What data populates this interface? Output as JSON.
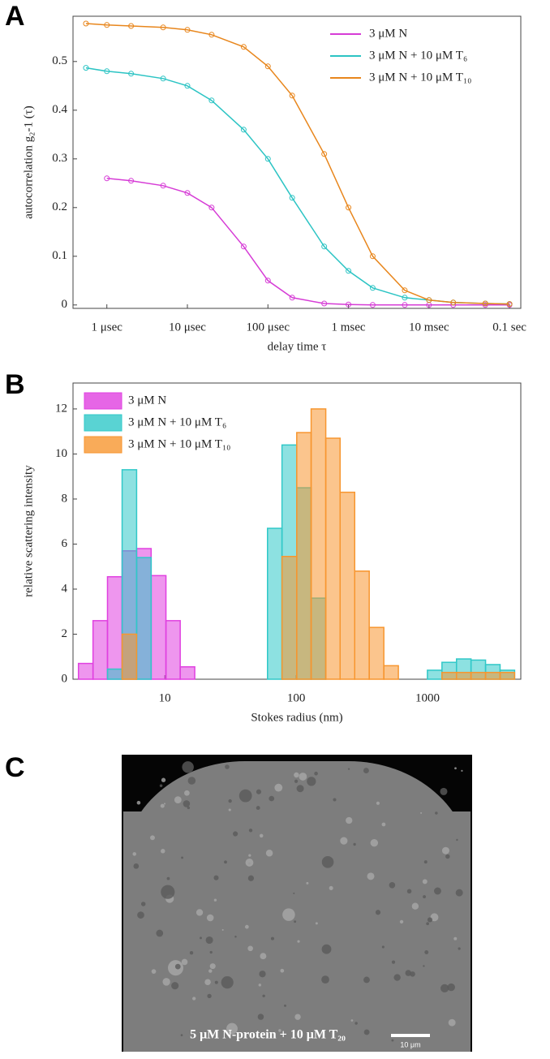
{
  "panel_labels": [
    "A",
    "B",
    "C"
  ],
  "chart_data": [
    {
      "type": "line",
      "log_x": true,
      "legend": "upper right",
      "xlabel": "delay time τ",
      "ylabel": "autocorrelation g₂-1 (τ)",
      "x": [
        5.5e-07,
        1e-06,
        2e-06,
        5e-06,
        1e-05,
        2e-05,
        5e-05,
        0.0001,
        0.0002,
        0.0005,
        0.001,
        0.002,
        0.005,
        0.01,
        0.02,
        0.05,
        0.1
      ],
      "series": [
        {
          "name": "3 μM N",
          "color": "#d63cd6",
          "values": [
            null,
            0.26,
            0.255,
            0.245,
            0.23,
            0.2,
            0.12,
            0.05,
            0.015,
            0.003,
            0.001,
            0,
            0,
            0,
            0,
            0,
            0
          ]
        },
        {
          "name": "3 μM N + 10 μM T₆",
          "color": "#2cc4c4",
          "values": [
            0.487,
            0.48,
            0.475,
            0.465,
            0.45,
            0.42,
            0.36,
            0.3,
            0.22,
            0.12,
            0.07,
            0.035,
            0.015,
            0.01,
            0.005,
            0.003,
            0.002
          ]
        },
        {
          "name": "3 μM N + 10 μM T₁₀",
          "color": "#e8861c",
          "values": [
            0.578,
            0.575,
            0.573,
            0.57,
            0.565,
            0.555,
            0.53,
            0.49,
            0.43,
            0.31,
            0.2,
            0.1,
            0.03,
            0.01,
            0.005,
            0.003,
            0.002
          ]
        }
      ],
      "xlim": [
        3.8e-07,
        0.138
      ],
      "xticks": [
        {
          "value": 1e-06,
          "label": "1 μsec"
        },
        {
          "value": 1e-05,
          "label": "10 μsec"
        },
        {
          "value": 0.0001,
          "label": "100 μsec"
        },
        {
          "value": 0.001,
          "label": "1 msec"
        },
        {
          "value": 0.01,
          "label": "10 msec"
        },
        {
          "value": 0.1,
          "label": "0.1 sec"
        }
      ],
      "ylim": [
        -0.007,
        0.593
      ],
      "yticks": [
        0,
        0.1,
        0.2,
        0.3,
        0.4,
        0.5
      ]
    },
    {
      "type": "histogram",
      "log_x": true,
      "legend": "upper left",
      "xlabel": "Stokes radius (nm)",
      "ylabel": "relative scattering intensity",
      "bins": [
        2.2,
        2.84,
        3.66,
        4.73,
        6.1,
        7.87,
        10.2,
        13.1,
        16.9,
        21.8,
        28.2,
        36.3,
        46.9,
        60.5,
        78,
        101,
        130,
        168,
        216,
        279,
        360,
        465,
        600,
        774,
        998,
        1288,
        1662,
        2144,
        2766,
        3568,
        4603
      ],
      "series": [
        {
          "name": "3 μM N",
          "color": "#e040e0",
          "values": [
            0.7,
            2.6,
            4.55,
            5.7,
            5.8,
            4.6,
            2.6,
            0.55,
            0,
            0,
            0,
            0,
            0,
            0,
            0,
            0,
            0,
            0,
            0,
            0,
            0,
            0,
            0,
            0,
            0,
            0,
            0,
            0,
            0,
            0
          ]
        },
        {
          "name": "3 μM N + 10 μM T₆",
          "color": "#30c8c8",
          "values": [
            0,
            0,
            0.45,
            9.3,
            5.4,
            0,
            0,
            0,
            0,
            0,
            0,
            0,
            0,
            6.7,
            10.4,
            8.5,
            3.6,
            0,
            0,
            0,
            0,
            0,
            0,
            0,
            0.4,
            0.75,
            0.9,
            0.85,
            0.65,
            0.4
          ]
        },
        {
          "name": "3 μM N + 10 μM T₁₀",
          "color": "#f7962f",
          "values": [
            0,
            0,
            0,
            2.0,
            0,
            0,
            0,
            0,
            0,
            0,
            0,
            0,
            0,
            0,
            5.45,
            10.95,
            12,
            10.7,
            8.3,
            4.8,
            2.3,
            0.6,
            0,
            0,
            0,
            0.3,
            0.3,
            0.3,
            0.3,
            0.3
          ]
        }
      ],
      "xlim": [
        2,
        5130
      ],
      "xticks": [
        10,
        100,
        1000
      ],
      "ylim": [
        0,
        13.15
      ],
      "yticks": [
        0,
        2,
        4,
        6,
        8,
        10,
        12
      ]
    }
  ],
  "image": {
    "caption": "5 μM N-protein + 10 μM T₂₀",
    "scale_bar": "10 μm"
  }
}
